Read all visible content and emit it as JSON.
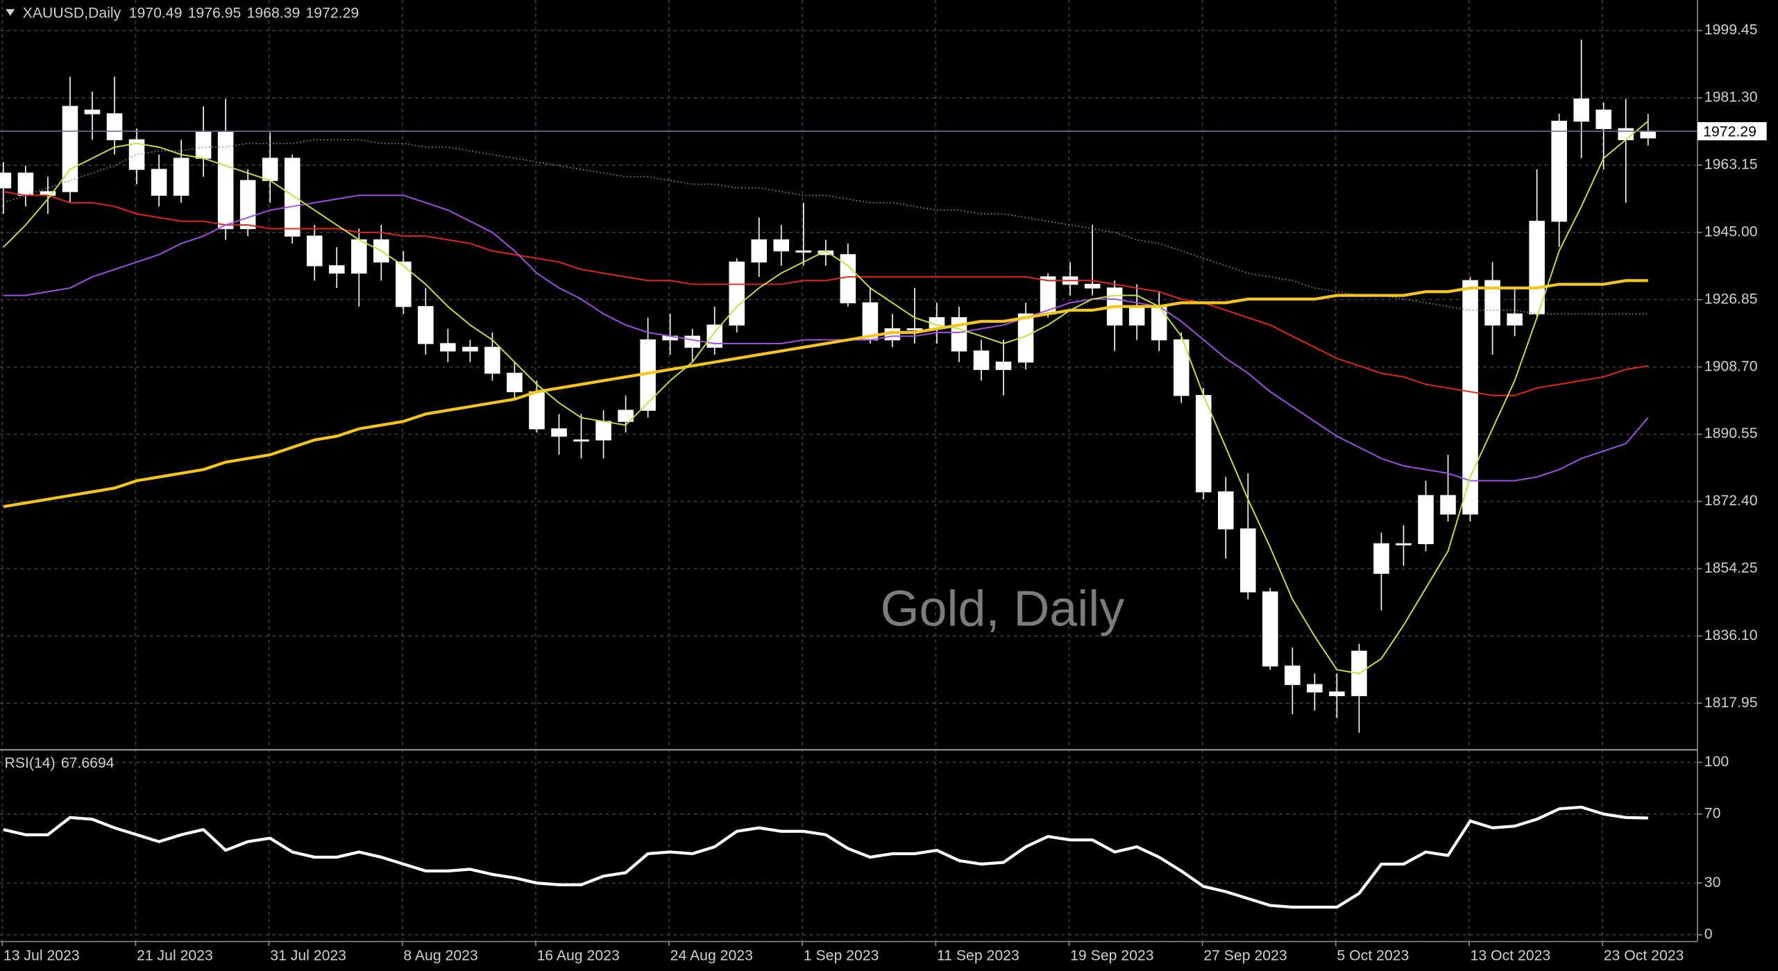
{
  "chart_data": [
    {
      "type": "candlestick",
      "title": "XAUUSD,Daily",
      "watermark": "Gold, Daily",
      "categories": [
        "13 Jul 2023",
        null,
        null,
        null,
        null,
        null,
        "21 Jul 2023",
        null,
        null,
        null,
        null,
        null,
        "31 Jul 2023",
        null,
        null,
        null,
        null,
        null,
        "8 Aug 2023",
        null,
        null,
        null,
        null,
        null,
        "16 Aug 2023",
        null,
        null,
        null,
        null,
        null,
        "24 Aug 2023",
        null,
        null,
        null,
        null,
        null,
        "1 Sep 2023",
        null,
        null,
        null,
        null,
        null,
        "11 Sep 2023",
        null,
        null,
        null,
        null,
        null,
        "19 Sep 2023",
        null,
        null,
        null,
        null,
        null,
        "27 Sep 2023",
        null,
        null,
        null,
        null,
        null,
        "5 Oct 2023",
        null,
        null,
        null,
        null,
        null,
        "13 Oct 2023",
        null,
        null,
        null,
        null,
        null,
        "23 Oct 2023",
        null,
        null
      ],
      "open": [
        1957,
        1961,
        1955,
        1956,
        1978,
        1977,
        1970,
        1962,
        1955,
        1965,
        1972,
        1946,
        1959,
        1965,
        1944,
        1936,
        1934,
        1943,
        1937,
        1925,
        1915,
        1913,
        1914,
        1907,
        1902,
        1892,
        1889,
        1889,
        1894,
        1897,
        1916,
        1917,
        1914,
        1920,
        1937,
        1943,
        1940,
        1940,
        1939,
        1926,
        1916,
        1919,
        1919,
        1922,
        1913,
        1908,
        1910,
        1923,
        1933,
        1931,
        1930,
        1920,
        1925,
        1916,
        1901,
        1875,
        1865,
        1848,
        1828,
        1823,
        1821,
        1820,
        1853,
        1861,
        1861,
        1874,
        1869,
        1932,
        1920,
        1923,
        1948,
        1975,
        1978,
        1973,
        1970.49
      ],
      "high": [
        1964,
        1963,
        1960,
        1987,
        1983,
        1987,
        1973,
        1966,
        1970,
        1979,
        1981,
        1962,
        1972,
        1966,
        1947,
        1941,
        1946,
        1947,
        1940,
        1930,
        1919,
        1916,
        1918,
        1910,
        1905,
        1896,
        1896,
        1897,
        1901,
        1922,
        1923,
        1919,
        1925,
        1938,
        1949,
        1947,
        1953,
        1943,
        1942,
        1930,
        1923,
        1930,
        1926,
        1925,
        1916,
        1916,
        1926,
        1934,
        1937,
        1947,
        1932,
        1931,
        1929,
        1918,
        1903,
        1879,
        1880,
        1849,
        1833,
        1826,
        1826,
        1834,
        1864,
        1866,
        1878,
        1885,
        1933,
        1937,
        1930,
        1962,
        1977,
        1997,
        1980,
        1981,
        1976.95
      ],
      "low": [
        1950,
        1952,
        1950,
        1953,
        1970,
        1966,
        1958,
        1952,
        1953,
        1960,
        1943,
        1944,
        1953,
        1942,
        1932,
        1930,
        1925,
        1932,
        1923,
        1912,
        1910,
        1910,
        1905,
        1900,
        1891,
        1885,
        1884,
        1884,
        1891,
        1895,
        1912,
        1910,
        1912,
        1918,
        1933,
        1936,
        1936,
        1936,
        1925,
        1915,
        1914,
        1915,
        1915,
        1910,
        1905,
        1901,
        1908,
        1922,
        1928,
        1928,
        1913,
        1916,
        1913,
        1899,
        1873,
        1857,
        1846,
        1827,
        1815,
        1816,
        1814,
        1810,
        1843,
        1855,
        1859,
        1867,
        1867,
        1912,
        1917,
        1922,
        1941,
        1965,
        1962,
        1953,
        1968.39
      ],
      "close": [
        1961,
        1955,
        1956,
        1979,
        1977,
        1970,
        1962,
        1955,
        1965,
        1972,
        1946,
        1959,
        1965,
        1944,
        1936,
        1934,
        1943,
        1937,
        1925,
        1915,
        1913,
        1914,
        1907,
        1902,
        1892,
        1890,
        1889,
        1894,
        1897,
        1916,
        1917,
        1914,
        1920,
        1937,
        1943,
        1940,
        1940,
        1939,
        1926,
        1916,
        1919,
        1919,
        1922,
        1913,
        1908,
        1910,
        1923,
        1933,
        1931,
        1930,
        1920,
        1925,
        1916,
        1901,
        1875,
        1865,
        1848,
        1828,
        1823,
        1821,
        1820,
        1832,
        1861,
        1861,
        1874,
        1869,
        1932,
        1920,
        1923,
        1948,
        1975,
        1981,
        1973,
        1970,
        1972.29
      ],
      "candle_color": "#ffffff",
      "series": [
        {
          "color": "#8c8c8c",
          "style": "dotted",
          "values": [
            1953,
            1955,
            1957,
            1959,
            1961,
            1963,
            1966,
            1967,
            1967,
            1968,
            1968,
            1969,
            1969,
            1969,
            1970,
            1970,
            1970,
            1969,
            1969,
            1968,
            1968,
            1967,
            1966,
            1965,
            1964,
            1963,
            1962,
            1961,
            1960,
            1960,
            1959,
            1958,
            1958,
            1957,
            1957,
            1956,
            1955,
            1955,
            1954,
            1953,
            1953,
            1952,
            1951,
            1951,
            1950,
            1950,
            1949,
            1948,
            1947,
            1946,
            1945,
            1943,
            1942,
            1940,
            1938,
            1936,
            1934,
            1933,
            1932,
            1930,
            1929,
            1928,
            1928,
            1927,
            1926,
            1925,
            1924,
            1924,
            1924,
            1923,
            1923,
            1923,
            1923,
            1923,
            1923
          ]
        },
        {
          "color": "#e8231c",
          "style": "solid",
          "values": [
            1956,
            1955,
            1955,
            1953,
            1953,
            1952,
            1950,
            1949,
            1948,
            1948,
            1947,
            1947,
            1946,
            1946,
            1946,
            1946,
            1945,
            1945,
            1944,
            1944,
            1943,
            1942,
            1940,
            1939,
            1938,
            1937,
            1935,
            1934,
            1933,
            1932,
            1932,
            1931,
            1931,
            1931,
            1931,
            1931,
            1932,
            1932,
            1933,
            1933,
            1933,
            1933,
            1933,
            1933,
            1933,
            1933,
            1933,
            1932,
            1932,
            1932,
            1931,
            1930,
            1929,
            1927,
            1926,
            1924,
            1922,
            1920,
            1917,
            1914,
            1911,
            1909,
            1907,
            1906,
            1904,
            1903,
            1902,
            1901,
            1901,
            1903,
            1904,
            1905,
            1906,
            1908,
            1909
          ]
        },
        {
          "color": "#a24fe8",
          "style": "solid",
          "values": [
            1928,
            1928,
            1929,
            1930,
            1933,
            1935,
            1937,
            1939,
            1942,
            1944,
            1947,
            1949,
            1951,
            1952,
            1953,
            1954,
            1955,
            1955,
            1955,
            1953,
            1951,
            1948,
            1945,
            1940,
            1934,
            1930,
            1927,
            1923,
            1920,
            1918,
            1917,
            1916,
            1915,
            1915,
            1915,
            1915,
            1916,
            1916,
            1916,
            1916,
            1917,
            1917,
            1918,
            1918,
            1919,
            1920,
            1922,
            1924,
            1926,
            1927,
            1927,
            1926,
            1925,
            1921,
            1916,
            1911,
            1907,
            1902,
            1898,
            1894,
            1890,
            1887,
            1884,
            1882,
            1881,
            1880,
            1878,
            1878,
            1878,
            1879,
            1881,
            1884,
            1886,
            1888,
            1895
          ]
        },
        {
          "color": "#f5c518",
          "style": "bold",
          "values": [
            1871,
            1872,
            1873,
            1874,
            1875,
            1876,
            1878,
            1879,
            1880,
            1881,
            1883,
            1884,
            1885,
            1887,
            1889,
            1890,
            1892,
            1893,
            1894,
            1896,
            1897,
            1898,
            1899,
            1900,
            1902,
            1903,
            1904,
            1905,
            1906,
            1907,
            1908,
            1909,
            1910,
            1911,
            1912,
            1913,
            1914,
            1915,
            1916,
            1917,
            1918,
            1918,
            1919,
            1920,
            1921,
            1921,
            1922,
            1923,
            1924,
            1924,
            1925,
            1925,
            1925,
            1926,
            1926,
            1926,
            1927,
            1927,
            1927,
            1927,
            1928,
            1928,
            1928,
            1928,
            1929,
            1929,
            1930,
            1930,
            1930,
            1930,
            1931,
            1931,
            1931,
            1932,
            1932
          ]
        },
        {
          "color": "#c8e03c",
          "style": "solid",
          "values": [
            1941,
            1947,
            1954,
            1962,
            1965,
            1968,
            1969,
            1968,
            1966,
            1965,
            1963,
            1961,
            1959,
            1955,
            1951,
            1947,
            1943,
            1940,
            1936,
            1931,
            1925,
            1920,
            1916,
            1910,
            1904,
            1899,
            1895,
            1894,
            1893,
            1899,
            1905,
            1910,
            1918,
            1925,
            1930,
            1934,
            1937,
            1940,
            1936,
            1930,
            1926,
            1922,
            1920,
            1919,
            1917,
            1915,
            1917,
            1920,
            1924,
            1927,
            1928,
            1928,
            1925,
            1917,
            1901,
            1887,
            1873,
            1860,
            1846,
            1836,
            1827,
            1826,
            1830,
            1839,
            1849,
            1859,
            1879,
            1892,
            1905,
            1922,
            1940,
            1952,
            1965,
            1970,
            1975
          ]
        }
      ],
      "ylim": [
        1805.7,
        2007.7
      ],
      "yticks": [
        1999.45,
        {
          "value": 1981.3,
          "label": "1981.30"
        },
        1963.15,
        {
          "value": 1945,
          "label": "1945.00"
        },
        1926.85,
        {
          "value": 1908.7,
          "label": "1908.70"
        },
        1890.55,
        {
          "value": 1872.4,
          "label": "1872.40"
        },
        1854.25,
        {
          "value": 1836.1,
          "label": "1836.10"
        },
        1817.95
      ],
      "grid": true
    },
    {
      "type": "line",
      "title": "RSI(14)",
      "series": [
        {
          "color": "#ffffff",
          "style": "bold",
          "values": [
            61,
            58,
            58,
            68,
            67,
            62,
            58,
            54,
            58,
            61,
            49,
            54,
            56,
            48,
            45,
            45,
            48,
            45,
            41,
            37,
            37,
            38,
            35,
            33,
            30,
            29,
            29,
            34,
            36,
            47,
            48,
            47,
            51,
            60,
            62,
            60,
            60,
            58,
            50,
            45,
            47,
            47,
            49,
            43,
            41,
            42,
            51,
            57,
            55,
            55,
            48,
            51,
            45,
            37,
            28,
            25,
            21,
            17,
            16,
            16,
            16,
            24,
            41,
            41,
            48,
            46,
            66,
            62,
            63,
            67,
            73,
            74,
            70,
            68,
            67.6694
          ]
        }
      ],
      "ylim": [
        -3.9,
        106.6
      ],
      "yticks": [
        0,
        30,
        70,
        100
      ],
      "grid": true
    }
  ]
}
